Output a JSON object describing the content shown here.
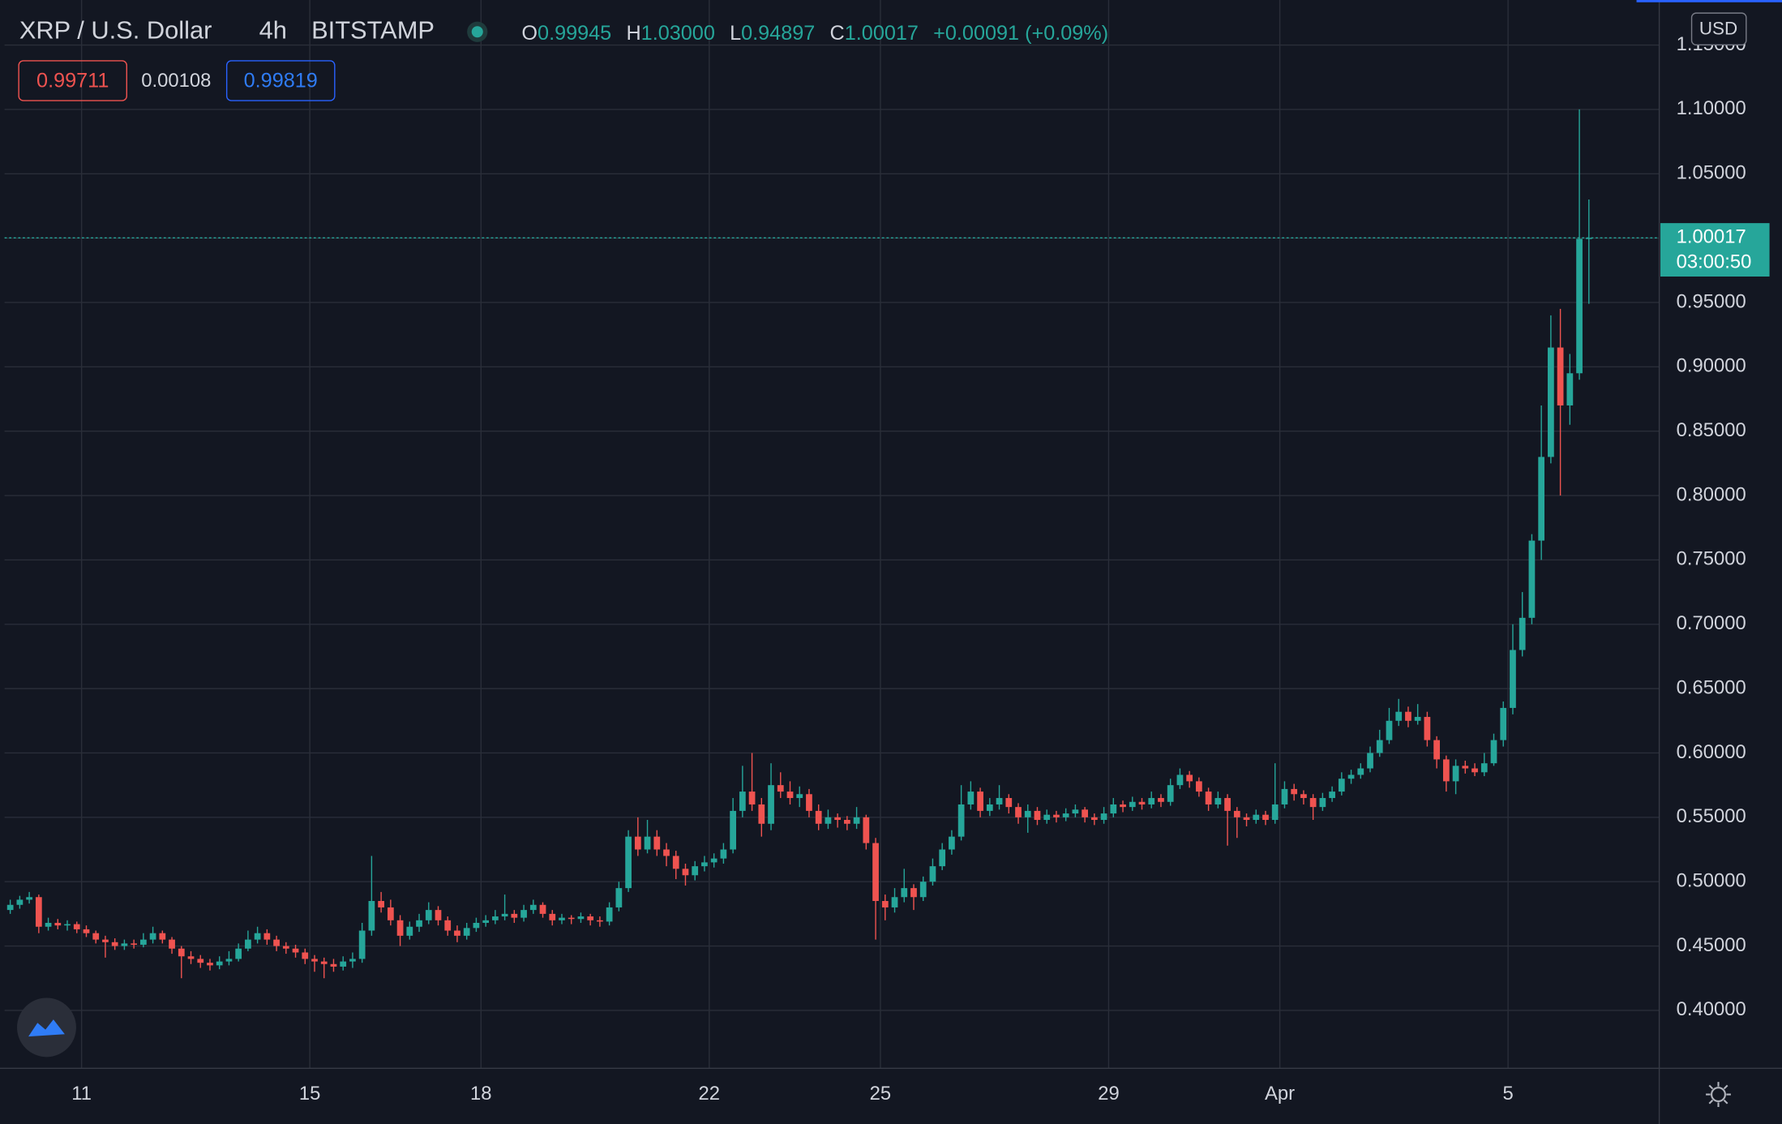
{
  "header": {
    "symbol": "XRP / U.S. Dollar",
    "interval": "4h",
    "exchange": "BITSTAMP",
    "o_label": "O",
    "o": "0.99945",
    "h_label": "H",
    "h": "1.03000",
    "l_label": "L",
    "l": "0.94897",
    "c_label": "C",
    "c": "1.00017",
    "change": "+0.00091 (+0.09%)",
    "sell": "0.99711",
    "spread": "0.00108",
    "buy": "0.99819",
    "currency": "USD",
    "countdown": "03:00:50"
  },
  "chart_data": {
    "type": "candlestick",
    "up_color": "#26a69a",
    "down_color": "#ef5350",
    "grid": true,
    "ylim": [
      0.355,
      1.185
    ],
    "yticks": [
      {
        "value": 0.4,
        "label": "0.40000"
      },
      {
        "value": 0.45,
        "label": "0.45000"
      },
      {
        "value": 0.5,
        "label": "0.50000"
      },
      {
        "value": 0.55,
        "label": "0.55000"
      },
      {
        "value": 0.6,
        "label": "0.60000"
      },
      {
        "value": 0.65,
        "label": "0.65000"
      },
      {
        "value": 0.7,
        "label": "0.70000"
      },
      {
        "value": 0.75,
        "label": "0.75000"
      },
      {
        "value": 0.8,
        "label": "0.80000"
      },
      {
        "value": 0.85,
        "label": "0.85000"
      },
      {
        "value": 0.9,
        "label": "0.90000"
      },
      {
        "value": 0.95,
        "label": "0.95000"
      },
      {
        "value": 1.0,
        "label": "1.00000"
      },
      {
        "value": 1.05,
        "label": "1.05000"
      },
      {
        "value": 1.1,
        "label": "1.10000"
      },
      {
        "value": 1.15,
        "label": "1.15000"
      }
    ],
    "xlim": [
      -0.6,
      173.4
    ],
    "xticks": [
      {
        "value": 7.5,
        "label": "11"
      },
      {
        "value": 31.5,
        "label": "15"
      },
      {
        "value": 49.5,
        "label": "18"
      },
      {
        "value": 73.5,
        "label": "22"
      },
      {
        "value": 91.5,
        "label": "25"
      },
      {
        "value": 115.5,
        "label": "29"
      },
      {
        "value": 133.5,
        "label": "Apr"
      },
      {
        "value": 157.5,
        "label": "5"
      }
    ],
    "candles": [
      [
        0.478,
        0.486,
        0.475,
        0.482
      ],
      [
        0.482,
        0.489,
        0.479,
        0.486
      ],
      [
        0.486,
        0.492,
        0.483,
        0.488
      ],
      [
        0.488,
        0.49,
        0.46,
        0.465
      ],
      [
        0.465,
        0.472,
        0.462,
        0.468
      ],
      [
        0.468,
        0.471,
        0.463,
        0.466
      ],
      [
        0.466,
        0.47,
        0.462,
        0.467
      ],
      [
        0.467,
        0.469,
        0.46,
        0.463
      ],
      [
        0.463,
        0.466,
        0.457,
        0.46
      ],
      [
        0.46,
        0.462,
        0.452,
        0.455
      ],
      [
        0.455,
        0.458,
        0.441,
        0.453
      ],
      [
        0.453,
        0.456,
        0.447,
        0.45
      ],
      [
        0.45,
        0.455,
        0.447,
        0.452
      ],
      [
        0.452,
        0.455,
        0.448,
        0.451
      ],
      [
        0.451,
        0.46,
        0.449,
        0.455
      ],
      [
        0.455,
        0.465,
        0.452,
        0.46
      ],
      [
        0.46,
        0.462,
        0.452,
        0.455
      ],
      [
        0.455,
        0.457,
        0.444,
        0.448
      ],
      [
        0.448,
        0.45,
        0.425,
        0.442
      ],
      [
        0.442,
        0.446,
        0.436,
        0.44
      ],
      [
        0.44,
        0.443,
        0.433,
        0.437
      ],
      [
        0.437,
        0.44,
        0.431,
        0.435
      ],
      [
        0.435,
        0.442,
        0.432,
        0.438
      ],
      [
        0.438,
        0.446,
        0.435,
        0.44
      ],
      [
        0.44,
        0.452,
        0.438,
        0.448
      ],
      [
        0.448,
        0.462,
        0.446,
        0.455
      ],
      [
        0.455,
        0.465,
        0.452,
        0.46
      ],
      [
        0.46,
        0.463,
        0.451,
        0.455
      ],
      [
        0.455,
        0.458,
        0.446,
        0.45
      ],
      [
        0.45,
        0.453,
        0.444,
        0.448
      ],
      [
        0.448,
        0.451,
        0.441,
        0.445
      ],
      [
        0.445,
        0.448,
        0.436,
        0.44
      ],
      [
        0.44,
        0.443,
        0.43,
        0.438
      ],
      [
        0.438,
        0.441,
        0.425,
        0.436
      ],
      [
        0.436,
        0.44,
        0.43,
        0.434
      ],
      [
        0.434,
        0.442,
        0.431,
        0.438
      ],
      [
        0.438,
        0.445,
        0.433,
        0.44
      ],
      [
        0.44,
        0.468,
        0.437,
        0.462
      ],
      [
        0.462,
        0.52,
        0.458,
        0.485
      ],
      [
        0.485,
        0.492,
        0.476,
        0.48
      ],
      [
        0.48,
        0.486,
        0.466,
        0.47
      ],
      [
        0.47,
        0.474,
        0.45,
        0.458
      ],
      [
        0.458,
        0.469,
        0.455,
        0.465
      ],
      [
        0.465,
        0.475,
        0.461,
        0.47
      ],
      [
        0.47,
        0.484,
        0.467,
        0.478
      ],
      [
        0.478,
        0.481,
        0.466,
        0.47
      ],
      [
        0.47,
        0.473,
        0.458,
        0.462
      ],
      [
        0.462,
        0.466,
        0.453,
        0.458
      ],
      [
        0.458,
        0.468,
        0.455,
        0.464
      ],
      [
        0.464,
        0.472,
        0.461,
        0.468
      ],
      [
        0.468,
        0.474,
        0.465,
        0.47
      ],
      [
        0.47,
        0.478,
        0.467,
        0.473
      ],
      [
        0.473,
        0.49,
        0.47,
        0.475
      ],
      [
        0.475,
        0.478,
        0.468,
        0.472
      ],
      [
        0.472,
        0.482,
        0.469,
        0.478
      ],
      [
        0.478,
        0.486,
        0.475,
        0.482
      ],
      [
        0.482,
        0.484,
        0.472,
        0.475
      ],
      [
        0.475,
        0.478,
        0.466,
        0.47
      ],
      [
        0.47,
        0.475,
        0.467,
        0.472
      ],
      [
        0.472,
        0.474,
        0.467,
        0.471
      ],
      [
        0.471,
        0.476,
        0.468,
        0.473
      ],
      [
        0.473,
        0.475,
        0.466,
        0.47
      ],
      [
        0.47,
        0.473,
        0.465,
        0.469
      ],
      [
        0.469,
        0.484,
        0.466,
        0.48
      ],
      [
        0.48,
        0.5,
        0.477,
        0.495
      ],
      [
        0.495,
        0.54,
        0.492,
        0.535
      ],
      [
        0.535,
        0.55,
        0.52,
        0.525
      ],
      [
        0.525,
        0.548,
        0.522,
        0.535
      ],
      [
        0.535,
        0.54,
        0.52,
        0.525
      ],
      [
        0.525,
        0.53,
        0.512,
        0.52
      ],
      [
        0.52,
        0.524,
        0.502,
        0.51
      ],
      [
        0.51,
        0.514,
        0.497,
        0.505
      ],
      [
        0.505,
        0.516,
        0.501,
        0.512
      ],
      [
        0.512,
        0.52,
        0.508,
        0.515
      ],
      [
        0.515,
        0.522,
        0.511,
        0.518
      ],
      [
        0.518,
        0.53,
        0.514,
        0.525
      ],
      [
        0.525,
        0.565,
        0.522,
        0.555
      ],
      [
        0.555,
        0.59,
        0.55,
        0.57
      ],
      [
        0.57,
        0.6,
        0.555,
        0.56
      ],
      [
        0.56,
        0.565,
        0.535,
        0.545
      ],
      [
        0.545,
        0.592,
        0.54,
        0.575
      ],
      [
        0.575,
        0.585,
        0.565,
        0.57
      ],
      [
        0.57,
        0.578,
        0.56,
        0.565
      ],
      [
        0.565,
        0.574,
        0.558,
        0.568
      ],
      [
        0.568,
        0.572,
        0.55,
        0.555
      ],
      [
        0.555,
        0.56,
        0.54,
        0.545
      ],
      [
        0.545,
        0.556,
        0.541,
        0.55
      ],
      [
        0.55,
        0.553,
        0.542,
        0.548
      ],
      [
        0.548,
        0.551,
        0.54,
        0.545
      ],
      [
        0.545,
        0.558,
        0.541,
        0.55
      ],
      [
        0.55,
        0.552,
        0.525,
        0.53
      ],
      [
        0.53,
        0.534,
        0.455,
        0.485
      ],
      [
        0.485,
        0.49,
        0.47,
        0.48
      ],
      [
        0.48,
        0.495,
        0.476,
        0.488
      ],
      [
        0.488,
        0.51,
        0.484,
        0.495
      ],
      [
        0.495,
        0.498,
        0.478,
        0.488
      ],
      [
        0.488,
        0.504,
        0.485,
        0.5
      ],
      [
        0.5,
        0.518,
        0.497,
        0.512
      ],
      [
        0.512,
        0.53,
        0.509,
        0.525
      ],
      [
        0.525,
        0.54,
        0.521,
        0.535
      ],
      [
        0.535,
        0.575,
        0.532,
        0.56
      ],
      [
        0.56,
        0.578,
        0.556,
        0.57
      ],
      [
        0.57,
        0.573,
        0.55,
        0.555
      ],
      [
        0.555,
        0.565,
        0.551,
        0.56
      ],
      [
        0.56,
        0.575,
        0.556,
        0.565
      ],
      [
        0.565,
        0.568,
        0.553,
        0.558
      ],
      [
        0.558,
        0.561,
        0.545,
        0.55
      ],
      [
        0.55,
        0.56,
        0.538,
        0.555
      ],
      [
        0.555,
        0.558,
        0.544,
        0.548
      ],
      [
        0.548,
        0.556,
        0.545,
        0.552
      ],
      [
        0.552,
        0.555,
        0.546,
        0.55
      ],
      [
        0.55,
        0.557,
        0.547,
        0.553
      ],
      [
        0.553,
        0.56,
        0.55,
        0.556
      ],
      [
        0.556,
        0.558,
        0.546,
        0.55
      ],
      [
        0.55,
        0.553,
        0.544,
        0.548
      ],
      [
        0.548,
        0.558,
        0.545,
        0.553
      ],
      [
        0.553,
        0.565,
        0.55,
        0.56
      ],
      [
        0.56,
        0.563,
        0.554,
        0.558
      ],
      [
        0.558,
        0.566,
        0.555,
        0.562
      ],
      [
        0.562,
        0.565,
        0.556,
        0.56
      ],
      [
        0.56,
        0.57,
        0.557,
        0.565
      ],
      [
        0.565,
        0.568,
        0.558,
        0.562
      ],
      [
        0.562,
        0.58,
        0.559,
        0.575
      ],
      [
        0.575,
        0.588,
        0.572,
        0.583
      ],
      [
        0.583,
        0.586,
        0.573,
        0.578
      ],
      [
        0.578,
        0.581,
        0.566,
        0.57
      ],
      [
        0.57,
        0.573,
        0.555,
        0.56
      ],
      [
        0.56,
        0.57,
        0.557,
        0.565
      ],
      [
        0.565,
        0.568,
        0.528,
        0.555
      ],
      [
        0.555,
        0.558,
        0.534,
        0.55
      ],
      [
        0.55,
        0.553,
        0.543,
        0.548
      ],
      [
        0.548,
        0.556,
        0.545,
        0.552
      ],
      [
        0.552,
        0.555,
        0.544,
        0.548
      ],
      [
        0.548,
        0.592,
        0.545,
        0.56
      ],
      [
        0.56,
        0.578,
        0.557,
        0.572
      ],
      [
        0.572,
        0.576,
        0.563,
        0.568
      ],
      [
        0.568,
        0.571,
        0.56,
        0.565
      ],
      [
        0.565,
        0.568,
        0.548,
        0.558
      ],
      [
        0.558,
        0.569,
        0.555,
        0.565
      ],
      [
        0.565,
        0.574,
        0.562,
        0.57
      ],
      [
        0.57,
        0.585,
        0.567,
        0.58
      ],
      [
        0.58,
        0.587,
        0.576,
        0.583
      ],
      [
        0.583,
        0.592,
        0.58,
        0.588
      ],
      [
        0.588,
        0.605,
        0.585,
        0.6
      ],
      [
        0.6,
        0.618,
        0.597,
        0.61
      ],
      [
        0.61,
        0.635,
        0.607,
        0.625
      ],
      [
        0.625,
        0.642,
        0.621,
        0.632
      ],
      [
        0.632,
        0.636,
        0.62,
        0.625
      ],
      [
        0.625,
        0.638,
        0.622,
        0.628
      ],
      [
        0.628,
        0.632,
        0.605,
        0.61
      ],
      [
        0.61,
        0.613,
        0.588,
        0.595
      ],
      [
        0.595,
        0.598,
        0.57,
        0.578
      ],
      [
        0.578,
        0.595,
        0.568,
        0.59
      ],
      [
        0.59,
        0.594,
        0.584,
        0.588
      ],
      [
        0.588,
        0.592,
        0.582,
        0.585
      ],
      [
        0.585,
        0.6,
        0.582,
        0.592
      ],
      [
        0.592,
        0.615,
        0.59,
        0.61
      ],
      [
        0.61,
        0.64,
        0.605,
        0.635
      ],
      [
        0.635,
        0.7,
        0.63,
        0.68
      ],
      [
        0.68,
        0.725,
        0.675,
        0.705
      ],
      [
        0.705,
        0.77,
        0.7,
        0.765
      ],
      [
        0.765,
        0.87,
        0.75,
        0.83
      ],
      [
        0.83,
        0.94,
        0.825,
        0.915
      ],
      [
        0.915,
        0.945,
        0.8,
        0.87
      ],
      [
        0.87,
        0.91,
        0.855,
        0.895
      ],
      [
        0.895,
        1.1,
        0.89,
        0.99945
      ],
      [
        0.99945,
        1.03,
        0.94897,
        1.00017
      ]
    ]
  }
}
